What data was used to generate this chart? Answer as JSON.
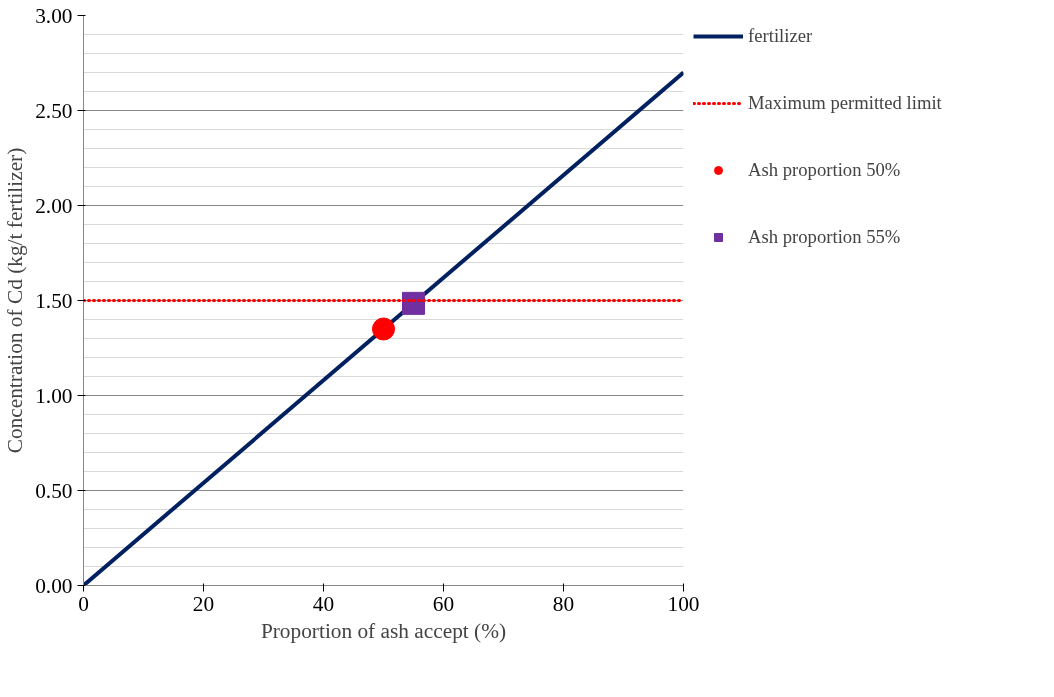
{
  "chart_data": {
    "type": "line",
    "xlabel": "Proportion of ash accept (%)",
    "ylabel": "Concentration of Cd (kg/t fertilizer)",
    "xlim": [
      0,
      100
    ],
    "xticks": [
      0,
      20,
      40,
      60,
      80,
      100
    ],
    "ylim": [
      0,
      3
    ],
    "yticks": [
      {
        "value": 0,
        "label": "0.00"
      },
      {
        "value": 0.5,
        "label": "0.50"
      },
      {
        "value": 1,
        "label": "1.00"
      },
      {
        "value": 1.5,
        "label": "1.50"
      },
      {
        "value": 2,
        "label": "2.00"
      },
      {
        "value": 2.5,
        "label": "2.50"
      },
      {
        "value": 3,
        "label": "3.00"
      }
    ],
    "grid": "y",
    "legend": "right",
    "series": [
      {
        "name": "fertilizer",
        "color": "#002060",
        "x": [
          0,
          100
        ],
        "values": [
          0,
          2.7
        ],
        "line_style": "solid"
      },
      {
        "name": "Ash proportion 50%",
        "type": "scatter",
        "color": "#ff0000",
        "x": [
          50
        ],
        "values": [
          1.35
        ],
        "marker": "circle"
      },
      {
        "name": "Ash proportion 55%",
        "type": "scatter",
        "color": "#7030a0",
        "x": [
          55
        ],
        "values": [
          1.485
        ],
        "marker": "square"
      }
    ],
    "ref_lines": [
      {
        "axis": "y",
        "value": 1.5,
        "label": "Maximum permitted limit",
        "color": "#ff0000",
        "line_style": "dotted"
      }
    ]
  }
}
